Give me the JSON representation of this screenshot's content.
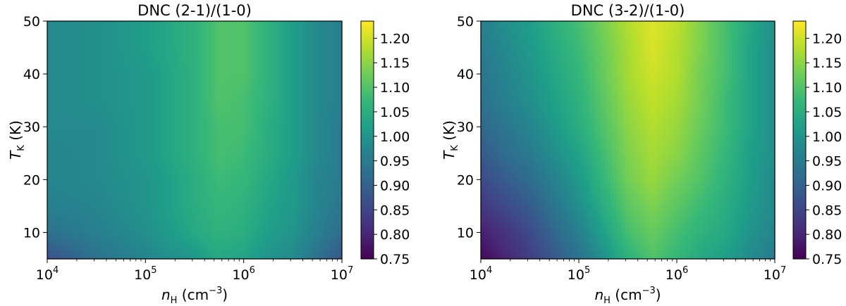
{
  "chart_data": [
    {
      "type": "heatmap",
      "title": "DNC (2-1)/(1-0)",
      "xlabel": {
        "sym": "n",
        "sub": "H",
        "unit": " (cm",
        "exp": "−3",
        "close": ")"
      },
      "ylabel": {
        "sym": "T",
        "sub": "K",
        "unit": " (K)"
      },
      "x_scale": "log",
      "xlim_log10": [
        4,
        7
      ],
      "xticks": [
        {
          "base": "10",
          "exp": "4"
        },
        {
          "base": "10",
          "exp": "5"
        },
        {
          "base": "10",
          "exp": "6"
        },
        {
          "base": "10",
          "exp": "7"
        }
      ],
      "ylim": [
        5,
        50
      ],
      "yticks": [
        "10",
        "20",
        "30",
        "40",
        "50"
      ],
      "grid": {
        "x_log10": [
          4.0,
          4.5,
          5.0,
          5.5,
          5.75,
          6.0,
          6.25,
          6.5,
          6.75,
          7.0
        ],
        "y": [
          5,
          10,
          15,
          20,
          25,
          30,
          35,
          40,
          45,
          50
        ],
        "z": [
          [
            0.87,
            0.93,
            0.97,
            1.01,
            1.04,
            1.03,
            1.0,
            0.98,
            0.93,
            0.88
          ],
          [
            0.93,
            0.96,
            0.99,
            1.04,
            1.06,
            1.05,
            1.02,
            1.0,
            0.96,
            0.92
          ],
          [
            0.96,
            0.97,
            1.0,
            1.05,
            1.07,
            1.06,
            1.03,
            1.01,
            0.97,
            0.94
          ],
          [
            0.97,
            0.98,
            1.0,
            1.05,
            1.08,
            1.07,
            1.04,
            1.01,
            0.97,
            0.95
          ],
          [
            0.97,
            0.98,
            1.01,
            1.06,
            1.09,
            1.08,
            1.05,
            1.02,
            0.98,
            0.95
          ],
          [
            0.98,
            0.98,
            1.01,
            1.06,
            1.09,
            1.09,
            1.05,
            1.02,
            0.98,
            0.95
          ],
          [
            0.98,
            0.99,
            1.01,
            1.06,
            1.1,
            1.09,
            1.06,
            1.02,
            0.98,
            0.96
          ],
          [
            0.98,
            0.99,
            1.01,
            1.06,
            1.1,
            1.1,
            1.06,
            1.02,
            0.98,
            0.96
          ],
          [
            0.98,
            0.99,
            1.02,
            1.06,
            1.1,
            1.1,
            1.06,
            1.02,
            0.98,
            0.96
          ],
          [
            0.98,
            0.99,
            1.02,
            1.06,
            1.1,
            1.1,
            1.06,
            1.02,
            0.98,
            0.96
          ]
        ]
      },
      "colorbar": {
        "vmin": 0.75,
        "vmax": 1.235,
        "ticks": [
          "0.75",
          "0.80",
          "0.85",
          "0.90",
          "0.95",
          "1.00",
          "1.05",
          "1.10",
          "1.15",
          "1.20"
        ],
        "colormap": "viridis"
      }
    },
    {
      "type": "heatmap",
      "title": "DNC (3-2)/(1-0)",
      "xlabel": {
        "sym": "n",
        "sub": "H",
        "unit": " (cm",
        "exp": "−3",
        "close": ")"
      },
      "ylabel": {
        "sym": "T",
        "sub": "K",
        "unit": " (K)"
      },
      "x_scale": "log",
      "xlim_log10": [
        4,
        7
      ],
      "xticks": [
        {
          "base": "10",
          "exp": "4"
        },
        {
          "base": "10",
          "exp": "5"
        },
        {
          "base": "10",
          "exp": "6"
        },
        {
          "base": "10",
          "exp": "7"
        }
      ],
      "ylim": [
        5,
        50
      ],
      "yticks": [
        "10",
        "20",
        "30",
        "40",
        "50"
      ],
      "grid": {
        "x_log10": [
          4.0,
          4.5,
          5.0,
          5.5,
          5.75,
          6.0,
          6.25,
          6.5,
          6.75,
          7.0
        ],
        "y": [
          5,
          10,
          15,
          20,
          25,
          30,
          35,
          40,
          45,
          50
        ],
        "z": [
          [
            0.76,
            0.84,
            0.93,
            1.06,
            1.1,
            1.07,
            1.04,
            1.02,
            0.98,
            0.95
          ],
          [
            0.79,
            0.86,
            0.96,
            1.09,
            1.12,
            1.09,
            1.06,
            1.04,
            1.0,
            0.97
          ],
          [
            0.83,
            0.89,
            0.99,
            1.11,
            1.14,
            1.11,
            1.08,
            1.05,
            1.01,
            0.98
          ],
          [
            0.86,
            0.92,
            1.01,
            1.13,
            1.16,
            1.13,
            1.1,
            1.06,
            1.02,
            0.98
          ],
          [
            0.89,
            0.95,
            1.03,
            1.14,
            1.17,
            1.15,
            1.11,
            1.07,
            1.02,
            0.99
          ],
          [
            0.91,
            0.97,
            1.05,
            1.15,
            1.18,
            1.16,
            1.12,
            1.08,
            1.03,
            0.99
          ],
          [
            0.93,
            0.99,
            1.06,
            1.16,
            1.19,
            1.17,
            1.13,
            1.08,
            1.03,
            0.99
          ],
          [
            0.94,
            1.0,
            1.07,
            1.17,
            1.2,
            1.18,
            1.13,
            1.09,
            1.03,
            0.99
          ],
          [
            0.95,
            1.01,
            1.08,
            1.17,
            1.21,
            1.18,
            1.14,
            1.09,
            1.03,
            0.99
          ],
          [
            0.96,
            1.02,
            1.09,
            1.18,
            1.21,
            1.19,
            1.14,
            1.09,
            1.04,
            0.99
          ]
        ]
      },
      "colorbar": {
        "vmin": 0.75,
        "vmax": 1.235,
        "ticks": [
          "0.75",
          "0.80",
          "0.85",
          "0.90",
          "0.95",
          "1.00",
          "1.05",
          "1.10",
          "1.15",
          "1.20"
        ],
        "colormap": "viridis"
      }
    }
  ]
}
